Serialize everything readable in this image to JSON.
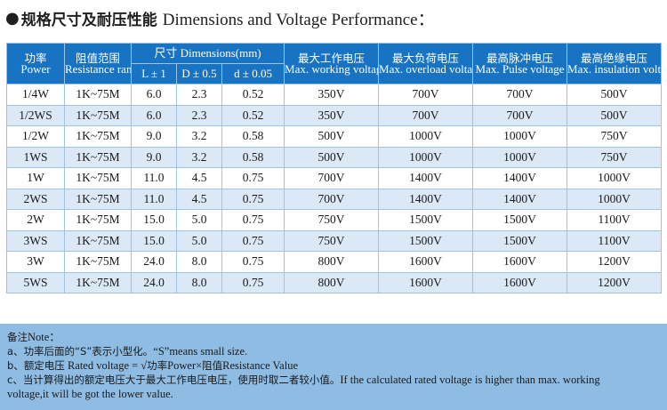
{
  "title": {
    "bullet": "●",
    "cn": "规格尺寸及耐压性能",
    "en": "Dimensions and Voltage Performance："
  },
  "table": {
    "headers": {
      "power_cn": "功率",
      "power_en": "Power",
      "range_cn": "阻值范围",
      "range_en": "Resistance range",
      "dims": "尺寸 Dimensions(mm)",
      "dim_l": "L ± 1",
      "dim_d": "D ± 0.5",
      "dim_lead": "d ± 0.05",
      "working_cn": "最大工作电压",
      "working_en": "Max. working voltage",
      "overload_cn": "最大负荷电压",
      "overload_en": "Max. overload voltage",
      "pulse_cn": "最高脉冲电压",
      "pulse_en": "Max. Pulse voltage",
      "insulation_cn": "最高绝缘电压",
      "insulation_en": "Max. insulation voltage"
    },
    "rows": [
      [
        "1/4W",
        "1K~75M",
        "6.0",
        "2.3",
        "0.52",
        "350V",
        "700V",
        "700V",
        "500V"
      ],
      [
        "1/2WS",
        "1K~75M",
        "6.0",
        "2.3",
        "0.52",
        "350V",
        "700V",
        "700V",
        "500V"
      ],
      [
        "1/2W",
        "1K~75M",
        "9.0",
        "3.2",
        "0.58",
        "500V",
        "1000V",
        "1000V",
        "750V"
      ],
      [
        "1WS",
        "1K~75M",
        "9.0",
        "3.2",
        "0.58",
        "500V",
        "1000V",
        "1000V",
        "750V"
      ],
      [
        "1W",
        "1K~75M",
        "11.0",
        "4.5",
        "0.75",
        "700V",
        "1400V",
        "1400V",
        "1000V"
      ],
      [
        "2WS",
        "1K~75M",
        "11.0",
        "4.5",
        "0.75",
        "700V",
        "1400V",
        "1400V",
        "1000V"
      ],
      [
        "2W",
        "1K~75M",
        "15.0",
        "5.0",
        "0.75",
        "750V",
        "1500V",
        "1500V",
        "1100V"
      ],
      [
        "3WS",
        "1K~75M",
        "15.0",
        "5.0",
        "0.75",
        "750V",
        "1500V",
        "1500V",
        "1100V"
      ],
      [
        "3W",
        "1K~75M",
        "24.0",
        "8.0",
        "0.75",
        "800V",
        "1600V",
        "1600V",
        "1200V"
      ],
      [
        "5WS",
        "1K~75M",
        "24.0",
        "8.0",
        "0.75",
        "800V",
        "1600V",
        "1600V",
        "1200V"
      ]
    ]
  },
  "notes": {
    "heading_cn": "备注",
    "heading_en": "Note：",
    "a_prefix": "a、",
    "a_cn": "功率后面的“S”表示小型化。",
    "a_en": "“S”means small size.",
    "b_prefix": "b、",
    "b_cn1": "额定电压",
    "b_en1": " Rated voltage = √",
    "b_cn2": "功率",
    "b_en2": "Power×",
    "b_cn3": "阻值",
    "b_en3": "Resistance Value",
    "c_prefix": "c、",
    "c_cn": "当计算得出的额定电压大于最大工作电压电压，使用时取二者较小值。",
    "c_en1": "If the calculated rated voltage is higher than max. working",
    "c_en2": "voltage,it will be got the lower value."
  },
  "colors": {
    "header_bg": "#1873c2",
    "row_alt_bg": "#dbe8f6",
    "notes_bg": "#8ebce3"
  }
}
